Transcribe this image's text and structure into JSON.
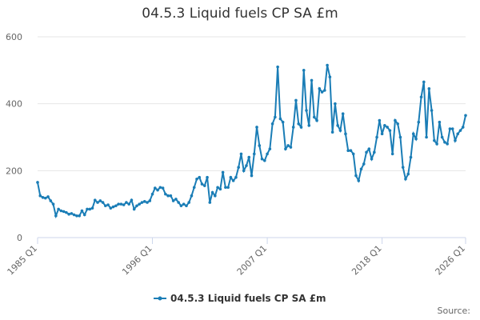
{
  "chart_data": {
    "type": "line",
    "title": "04.5.3 Liquid fuels CP SA £m",
    "categories": [
      "1985 Q1",
      null,
      null,
      null,
      null,
      null,
      null,
      null,
      null,
      null,
      null,
      null,
      null,
      null,
      null,
      null,
      null,
      null,
      null,
      null,
      null,
      null,
      null,
      null,
      null,
      null,
      null,
      null,
      null,
      null,
      null,
      null,
      null,
      null,
      null,
      null,
      null,
      null,
      null,
      null,
      null,
      null,
      null,
      null,
      "1996 Q1",
      null,
      null,
      null,
      null,
      null,
      null,
      null,
      null,
      null,
      null,
      null,
      null,
      null,
      null,
      null,
      null,
      null,
      null,
      null,
      null,
      null,
      null,
      null,
      null,
      null,
      null,
      null,
      null,
      null,
      null,
      null,
      null,
      null,
      null,
      null,
      null,
      null,
      null,
      null,
      null,
      null,
      null,
      null,
      "2007 Q1",
      null,
      null,
      null,
      null,
      null,
      null,
      null,
      null,
      null,
      null,
      null,
      null,
      null,
      null,
      null,
      null,
      null,
      null,
      null,
      null,
      null,
      null,
      null,
      null,
      null,
      null,
      null,
      null,
      null,
      null,
      null,
      null,
      null,
      null,
      null,
      null,
      null,
      null,
      null,
      null,
      null,
      null,
      null,
      "2018 Q1",
      null,
      null,
      null,
      null,
      null,
      null,
      null,
      null,
      null,
      null,
      null,
      null,
      null,
      null,
      null,
      null,
      null,
      null,
      null,
      null,
      null,
      null,
      null,
      null,
      null,
      null,
      null,
      null,
      null,
      null,
      null,
      "2026 Q1"
    ],
    "series": [
      {
        "name": "04.5.3 Liquid fuels CP SA £m",
        "color": "#1a7db6",
        "values": [
          165,
          125,
          120,
          118,
          122,
          110,
          100,
          65,
          85,
          80,
          78,
          75,
          70,
          72,
          68,
          65,
          65,
          80,
          68,
          85,
          85,
          88,
          112,
          105,
          110,
          105,
          95,
          98,
          88,
          92,
          95,
          100,
          100,
          98,
          105,
          100,
          112,
          85,
          95,
          100,
          105,
          108,
          105,
          110,
          130,
          148,
          142,
          150,
          148,
          130,
          125,
          125,
          110,
          115,
          105,
          95,
          100,
          95,
          105,
          125,
          150,
          175,
          180,
          160,
          155,
          180,
          105,
          135,
          125,
          150,
          145,
          195,
          150,
          150,
          180,
          170,
          180,
          210,
          250,
          200,
          215,
          240,
          185,
          250,
          330,
          275,
          235,
          230,
          250,
          265,
          340,
          360,
          510,
          355,
          345,
          265,
          275,
          270,
          330,
          410,
          340,
          330,
          500,
          380,
          335,
          470,
          360,
          350,
          445,
          435,
          440,
          515,
          480,
          315,
          400,
          335,
          320,
          370,
          310,
          260,
          260,
          250,
          185,
          170,
          205,
          220,
          255,
          265,
          235,
          255,
          300,
          350,
          310,
          335,
          330,
          320,
          250,
          350,
          340,
          300,
          210,
          175,
          190,
          240,
          310,
          295,
          345,
          420,
          465,
          300,
          445,
          380,
          290,
          280,
          345,
          300,
          285,
          280,
          325,
          325,
          290,
          310,
          320,
          330,
          365
        ]
      }
    ],
    "ylim": [
      0,
      600
    ],
    "yticks": [
      0,
      200,
      400,
      600
    ],
    "grid": true,
    "source": "Source:"
  }
}
